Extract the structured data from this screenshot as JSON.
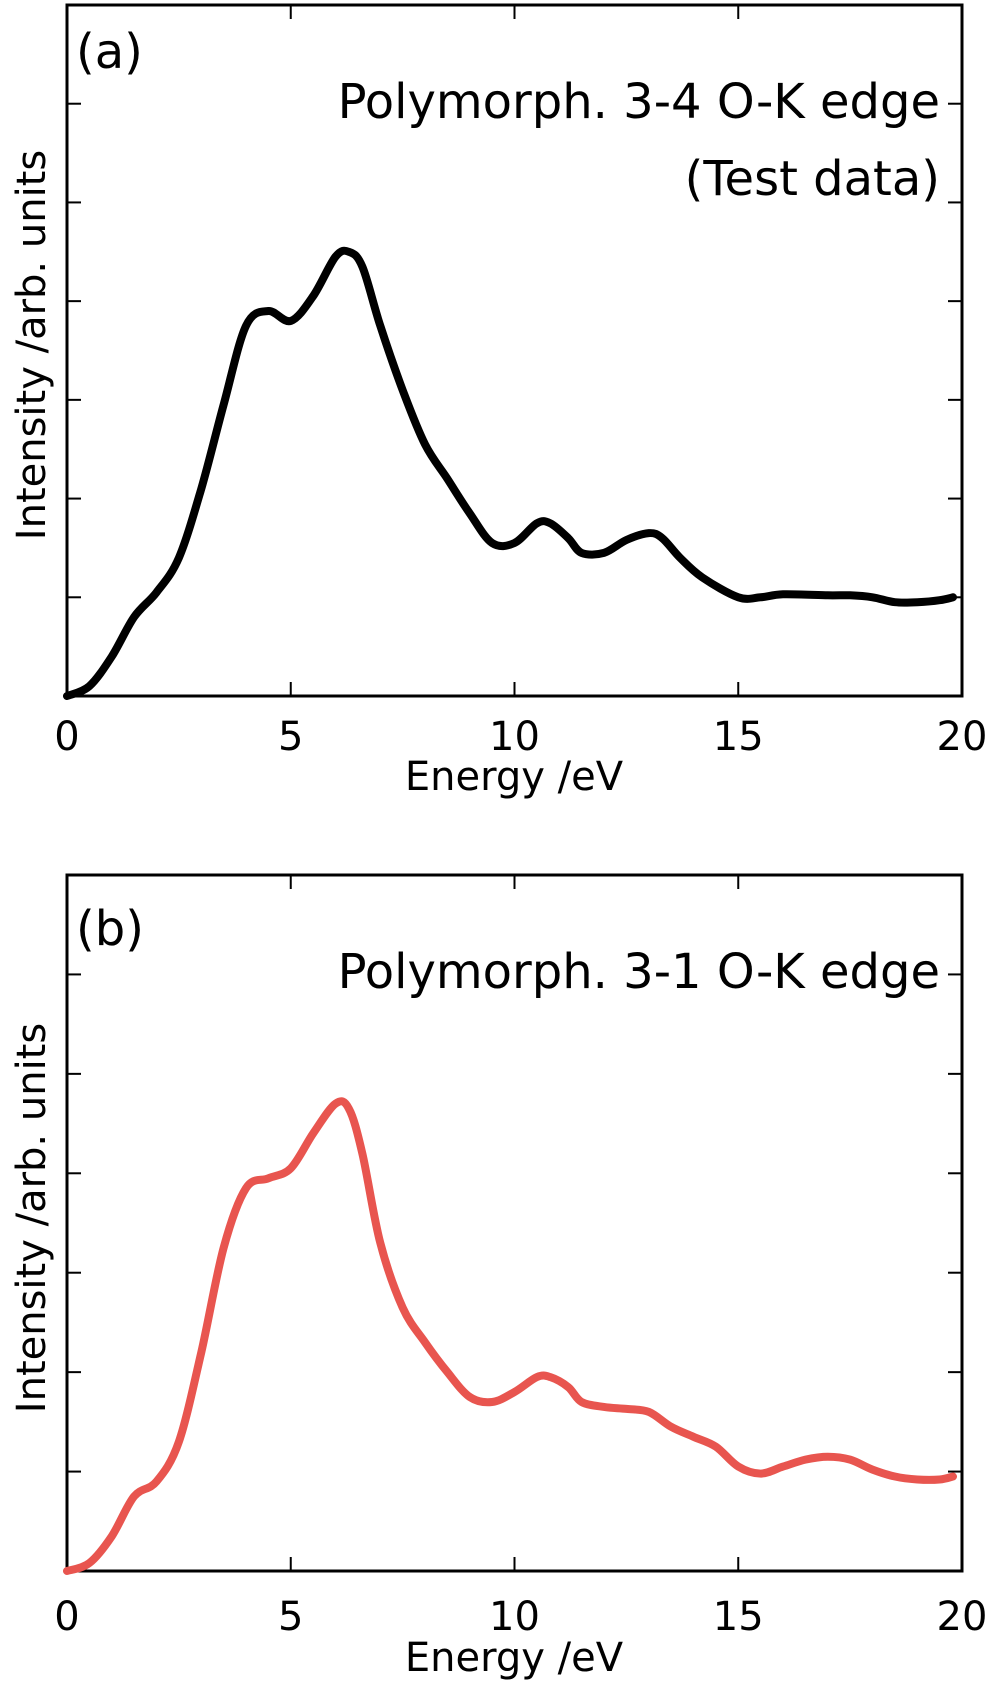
{
  "chart_data": [
    {
      "panel": "(a)",
      "type": "line",
      "title": "Polymorph. 3-4 O-K edge",
      "subtitle": "(Test data)",
      "xlabel": "Energy /eV",
      "ylabel": "Intensity /arb. units",
      "xlim": [
        0,
        20
      ],
      "ylim": [
        0,
        7
      ],
      "xticks": [
        0,
        5,
        10,
        15,
        20
      ],
      "xtick_labels": [
        "0",
        "5",
        "10",
        "15",
        "20"
      ],
      "yticks": [
        1,
        2,
        3,
        4,
        5,
        6
      ],
      "ytick_labels_shown": false,
      "grid": false,
      "color": "#000000",
      "series": [
        {
          "name": "Polymorph. 3-4",
          "x": [
            0,
            0.5,
            1.0,
            1.5,
            2.0,
            2.5,
            3.0,
            3.5,
            4.0,
            4.5,
            5.0,
            5.5,
            6.0,
            6.3,
            6.6,
            7.0,
            7.5,
            8.0,
            8.5,
            9.0,
            9.5,
            10.0,
            10.5,
            10.8,
            11.2,
            11.5,
            12.0,
            12.5,
            13.0,
            13.3,
            13.7,
            14.2,
            15.0,
            15.5,
            16.0,
            17.0,
            17.5,
            18.0,
            18.5,
            19.0,
            19.5,
            19.8
          ],
          "y": [
            0.0,
            0.1,
            0.4,
            0.8,
            1.05,
            1.4,
            2.1,
            2.95,
            3.75,
            3.9,
            3.8,
            4.05,
            4.45,
            4.5,
            4.35,
            3.75,
            3.1,
            2.55,
            2.2,
            1.85,
            1.55,
            1.55,
            1.75,
            1.75,
            1.6,
            1.45,
            1.45,
            1.58,
            1.65,
            1.6,
            1.4,
            1.2,
            1.0,
            1.0,
            1.03,
            1.02,
            1.02,
            1.0,
            0.95,
            0.95,
            0.97,
            1.0
          ]
        }
      ]
    },
    {
      "panel": "(b)",
      "type": "line",
      "title": "Polymorph. 3-1 O-K edge",
      "xlabel": "Energy /eV",
      "ylabel": "Intensity /arb. units",
      "xlim": [
        0,
        20
      ],
      "ylim": [
        0,
        7
      ],
      "xticks": [
        0,
        5,
        10,
        15,
        20
      ],
      "xtick_labels": [
        "0",
        "5",
        "10",
        "15",
        "20"
      ],
      "yticks": [
        1,
        2,
        3,
        4,
        5,
        6
      ],
      "ytick_labels_shown": false,
      "grid": false,
      "color": "#e8554f",
      "series": [
        {
          "name": "Polymorph. 3-1",
          "x": [
            0,
            0.5,
            1.0,
            1.5,
            2.0,
            2.5,
            3.0,
            3.5,
            4.0,
            4.5,
            5.0,
            5.5,
            6.0,
            6.3,
            6.6,
            7.0,
            7.5,
            8.0,
            8.5,
            9.0,
            9.5,
            10.0,
            10.5,
            10.8,
            11.2,
            11.5,
            12.0,
            12.5,
            13.0,
            13.5,
            14.0,
            14.5,
            15.0,
            15.5,
            16.0,
            16.5,
            17.0,
            17.5,
            18.0,
            18.5,
            19.0,
            19.5,
            19.8
          ],
          "y": [
            0.0,
            0.08,
            0.35,
            0.75,
            0.9,
            1.3,
            2.2,
            3.25,
            3.85,
            3.95,
            4.05,
            4.4,
            4.7,
            4.65,
            4.2,
            3.3,
            2.65,
            2.3,
            2.0,
            1.75,
            1.7,
            1.8,
            1.95,
            1.95,
            1.85,
            1.7,
            1.65,
            1.63,
            1.6,
            1.45,
            1.35,
            1.25,
            1.05,
            0.98,
            1.05,
            1.12,
            1.15,
            1.12,
            1.02,
            0.95,
            0.92,
            0.92,
            0.95
          ]
        }
      ]
    }
  ]
}
